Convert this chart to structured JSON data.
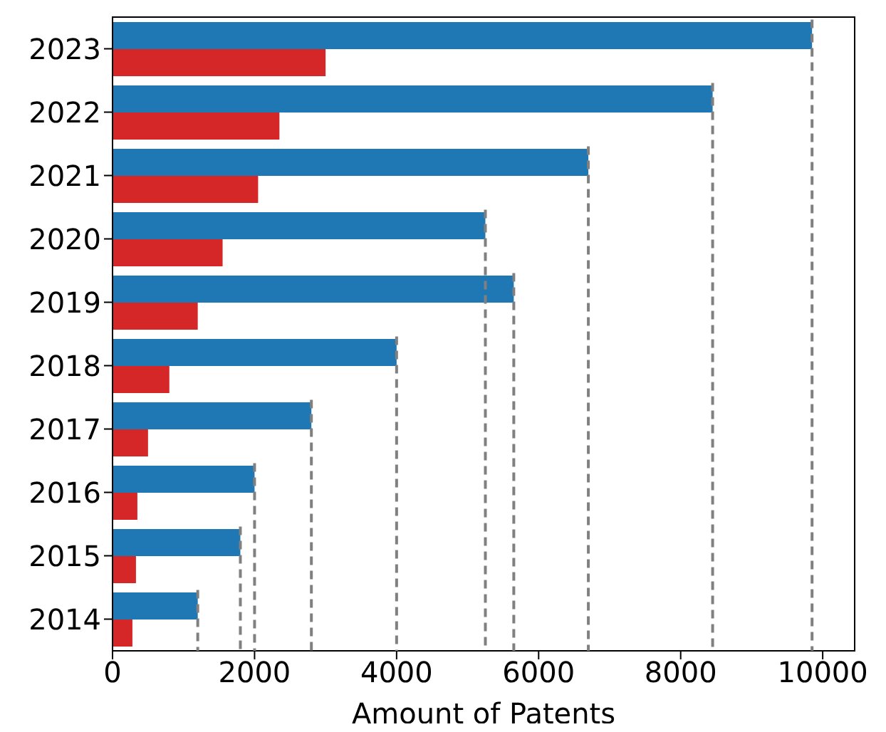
{
  "chart_data": {
    "type": "bar",
    "orientation": "horizontal",
    "xlabel": "Amount of Patents",
    "categories": [
      "2023",
      "2022",
      "2021",
      "2020",
      "2019",
      "2018",
      "2017",
      "2016",
      "2015",
      "2014"
    ],
    "series": [
      {
        "color": "#1f77b4",
        "values": [
          9850,
          8450,
          6700,
          5250,
          5650,
          4000,
          2800,
          2000,
          1800,
          1200
        ]
      },
      {
        "color": "#d62728",
        "values": [
          3000,
          2350,
          2050,
          1550,
          1200,
          800,
          500,
          350,
          330,
          280
        ]
      }
    ],
    "xlim": [
      0,
      10450
    ],
    "xticks": [
      0,
      2000,
      4000,
      6000,
      8000,
      10000
    ],
    "grid": false,
    "ref_lines": [
      {
        "axis": "x",
        "value": 9850,
        "color": "#808080",
        "line_style": "dashed"
      },
      {
        "axis": "x",
        "value": 8450,
        "color": "#808080",
        "line_style": "dashed"
      },
      {
        "axis": "x",
        "value": 6700,
        "color": "#808080",
        "line_style": "dashed"
      },
      {
        "axis": "x",
        "value": 5250,
        "color": "#808080",
        "line_style": "dashed"
      },
      {
        "axis": "x",
        "value": 5650,
        "color": "#808080",
        "line_style": "dashed"
      },
      {
        "axis": "x",
        "value": 4000,
        "color": "#808080",
        "line_style": "dashed"
      },
      {
        "axis": "x",
        "value": 2800,
        "color": "#808080",
        "line_style": "dashed"
      },
      {
        "axis": "x",
        "value": 2000,
        "color": "#808080",
        "line_style": "dashed"
      },
      {
        "axis": "x",
        "value": 1800,
        "color": "#808080",
        "line_style": "dashed"
      },
      {
        "axis": "x",
        "value": 1200,
        "color": "#808080",
        "line_style": "dashed"
      }
    ]
  }
}
